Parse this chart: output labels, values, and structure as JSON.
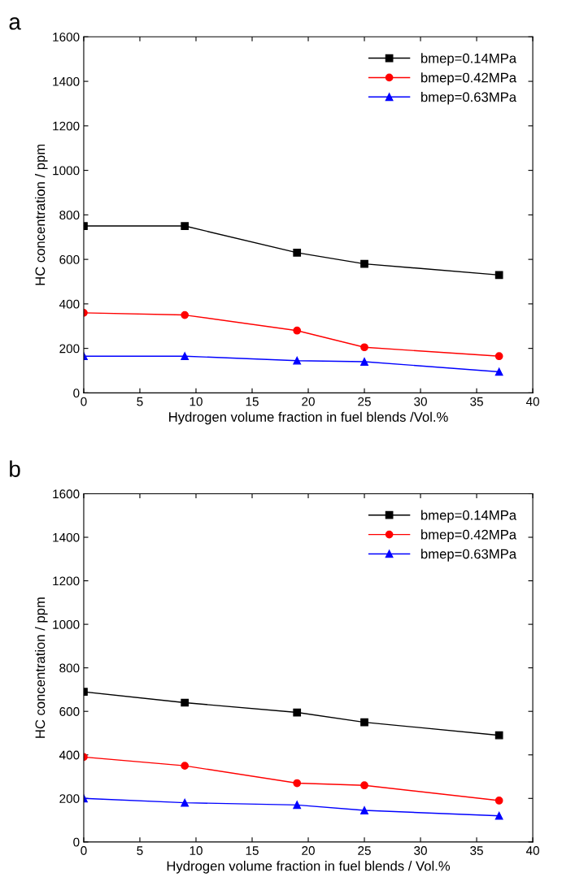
{
  "chart_data": [
    {
      "type": "line",
      "xlabel": "Hydrogen volume fraction in fuel blends /Vol.%",
      "ylabel": "HC concentration / ppm",
      "annotations": [
        "a"
      ],
      "x": [
        0,
        9,
        19,
        25,
        37
      ],
      "series": [
        {
          "name": "bmep=0.14MPa",
          "color": "#000000",
          "marker": "square",
          "values": [
            750,
            750,
            630,
            580,
            530
          ]
        },
        {
          "name": "bmep=0.42MPa",
          "color": "#ff0000",
          "marker": "circle",
          "values": [
            360,
            350,
            280,
            205,
            165
          ]
        },
        {
          "name": "bmep=0.63MPa",
          "color": "#0000ff",
          "marker": "triangle",
          "values": [
            165,
            165,
            145,
            140,
            95
          ]
        }
      ],
      "xlim": [
        0,
        40
      ],
      "xticks": [
        0,
        5,
        10,
        15,
        20,
        25,
        30,
        35,
        40
      ],
      "ylim": [
        0,
        1600
      ],
      "yticks": [
        0,
        200,
        400,
        600,
        800,
        1000,
        1200,
        1400,
        1600
      ],
      "legend": "top right",
      "grid": false,
      "line_style": "solid"
    },
    {
      "type": "line",
      "xlabel": "Hydrogen volume fraction in fuel blends / Vol.%",
      "ylabel": "HC concentration / ppm",
      "annotations": [
        "b"
      ],
      "x": [
        0,
        9,
        19,
        25,
        37
      ],
      "series": [
        {
          "name": "bmep=0.14MPa",
          "color": "#000000",
          "marker": "square",
          "values": [
            690,
            640,
            595,
            550,
            490
          ]
        },
        {
          "name": "bmep=0.42MPa",
          "color": "#ff0000",
          "marker": "circle",
          "values": [
            390,
            350,
            270,
            260,
            190
          ]
        },
        {
          "name": "bmep=0.63MPa",
          "color": "#0000ff",
          "marker": "triangle",
          "values": [
            200,
            180,
            170,
            145,
            120
          ]
        }
      ],
      "xlim": [
        0,
        40
      ],
      "xticks": [
        0,
        5,
        10,
        15,
        20,
        25,
        30,
        35,
        40
      ],
      "ylim": [
        0,
        1600
      ],
      "yticks": [
        0,
        200,
        400,
        600,
        800,
        1000,
        1200,
        1400,
        1600
      ],
      "legend": "top right",
      "grid": false,
      "line_style": "solid"
    }
  ]
}
